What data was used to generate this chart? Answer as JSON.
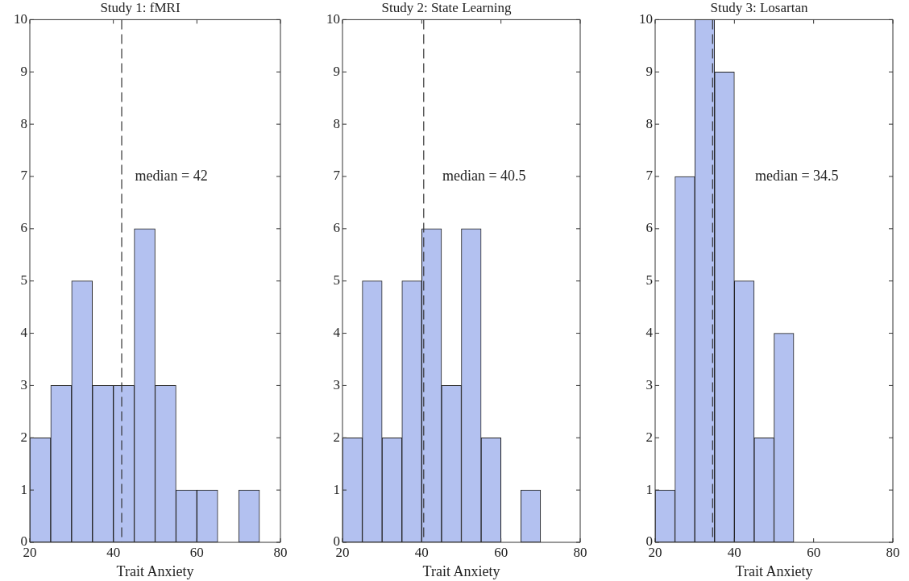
{
  "chart_data": [
    {
      "type": "histogram",
      "title": "Study 1: fMRI",
      "xlabel": "Trait Anxiety",
      "bins": [
        20,
        25,
        30,
        35,
        40,
        45,
        50,
        55,
        60,
        65,
        70,
        75
      ],
      "values": [
        2,
        3,
        5,
        3,
        3,
        6,
        3,
        1,
        1,
        0,
        1
      ],
      "color": "#b3c1f0",
      "xlim": [
        20,
        80
      ],
      "xticks": [
        20,
        40,
        60,
        80
      ],
      "ylim": [
        0,
        10
      ],
      "yticks": [
        0,
        1,
        2,
        3,
        4,
        5,
        6,
        7,
        8,
        9,
        10
      ],
      "ref_lines": [
        {
          "axis": "x",
          "value": 42,
          "label": "median = 42",
          "line_style": "dashed",
          "color": "#333333"
        }
      ]
    },
    {
      "type": "histogram",
      "title": "Study 2: State Learning",
      "xlabel": "Trait Anxiety",
      "bins": [
        20,
        25,
        30,
        35,
        40,
        45,
        50,
        55,
        60,
        65,
        70
      ],
      "values": [
        2,
        5,
        2,
        5,
        6,
        3,
        6,
        2,
        0,
        1
      ],
      "color": "#b3c1f0",
      "xlim": [
        20,
        80
      ],
      "xticks": [
        20,
        40,
        60,
        80
      ],
      "ylim": [
        0,
        10
      ],
      "yticks": [
        0,
        1,
        2,
        3,
        4,
        5,
        6,
        7,
        8,
        9,
        10
      ],
      "ref_lines": [
        {
          "axis": "x",
          "value": 40.5,
          "label": "median = 40.5",
          "line_style": "dashed",
          "color": "#333333"
        }
      ]
    },
    {
      "type": "histogram",
      "title": "Study 3: Losartan",
      "xlabel": "Trait Anxiety",
      "bins": [
        20,
        25,
        30,
        35,
        40,
        45,
        50,
        55
      ],
      "values": [
        1,
        7,
        10,
        9,
        5,
        2,
        4
      ],
      "color": "#b3c1f0",
      "xlim": [
        20,
        80
      ],
      "xticks": [
        20,
        40,
        60,
        80
      ],
      "ylim": [
        0,
        10
      ],
      "yticks": [
        0,
        1,
        2,
        3,
        4,
        5,
        6,
        7,
        8,
        9,
        10
      ],
      "ref_lines": [
        {
          "axis": "x",
          "value": 34.5,
          "label": "median = 34.5",
          "line_style": "dashed",
          "color": "#333333"
        }
      ]
    }
  ]
}
